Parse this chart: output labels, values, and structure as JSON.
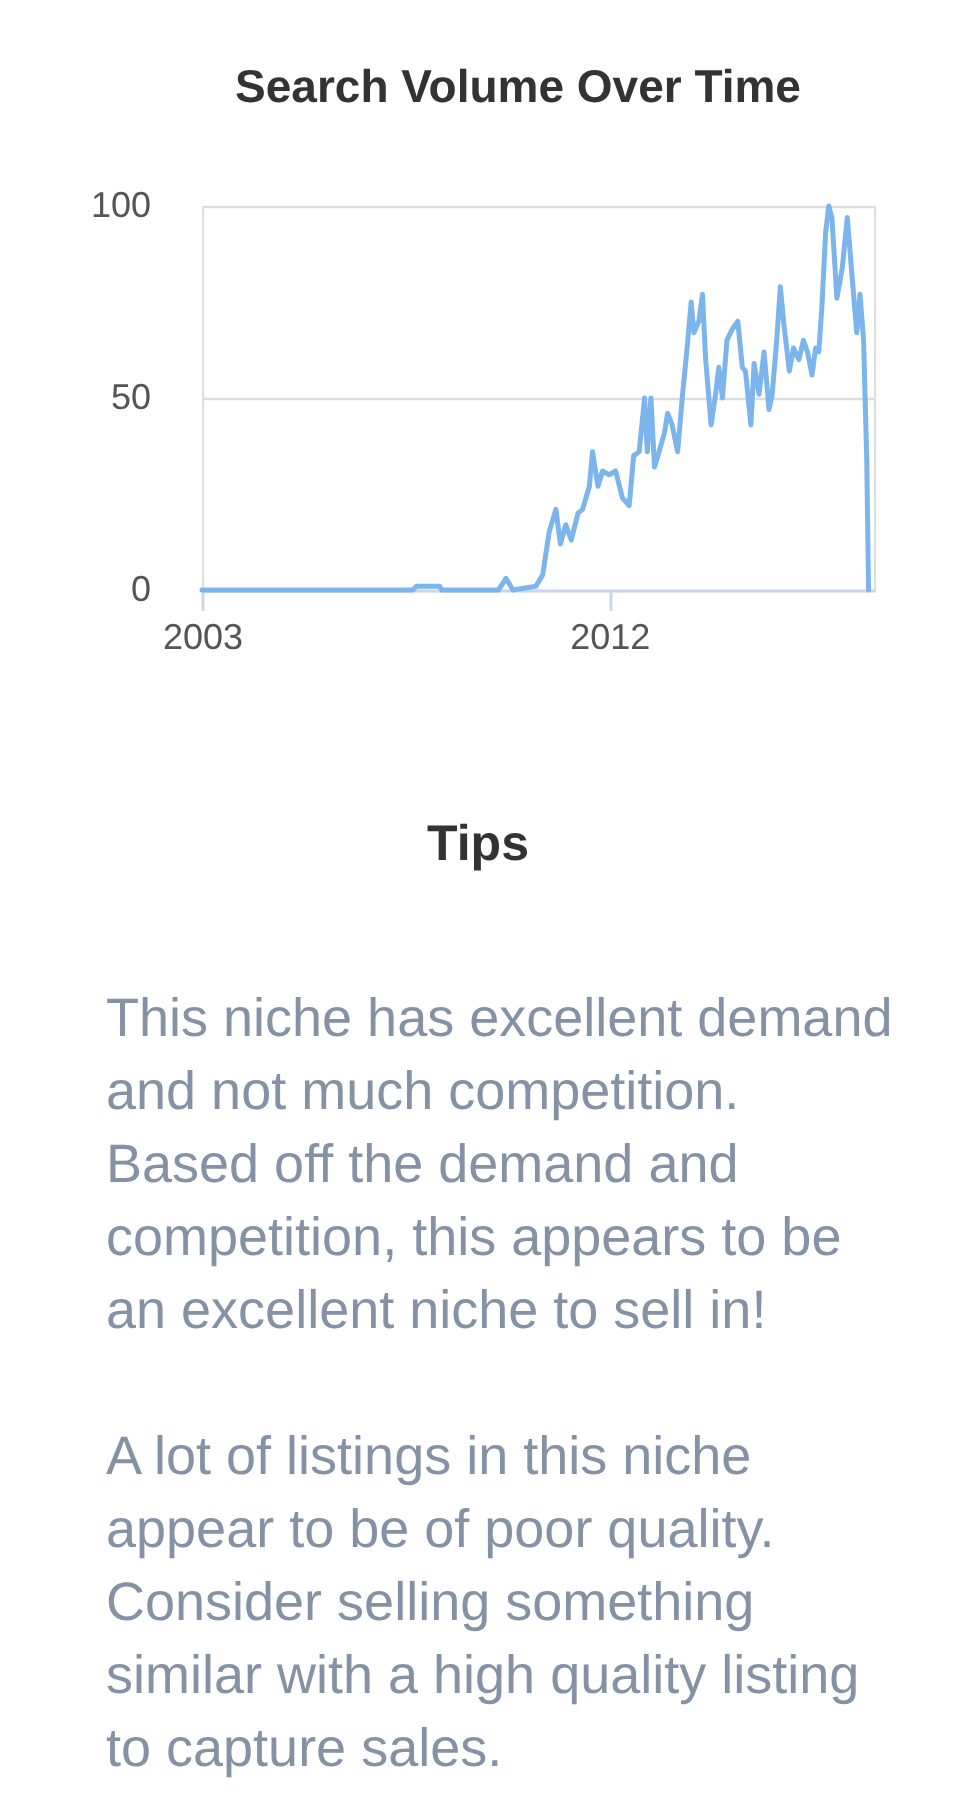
{
  "chart_data": {
    "type": "line",
    "title": "Search Volume Over Time",
    "x": [
      2003,
      2007.66,
      2007.74,
      2008.25,
      2008.3,
      2009.55,
      2009.72,
      2009.87,
      2010.38,
      2010.53,
      2010.67,
      2010.82,
      2010.92,
      2011.04,
      2011.16,
      2011.31,
      2011.41,
      2011.56,
      2011.63,
      2011.75,
      2011.85,
      2012.0,
      2012.14,
      2012.29,
      2012.44,
      2012.54,
      2012.66,
      2012.78,
      2012.84,
      2012.92,
      2013.0,
      2013.1,
      2013.22,
      2013.29,
      2013.39,
      2013.51,
      2013.62,
      2013.72,
      2013.81,
      2013.87,
      2013.98,
      2014.06,
      2014.13,
      2014.25,
      2014.35,
      2014.42,
      2014.5,
      2014.6,
      2014.72,
      2014.84,
      2014.94,
      2015.01,
      2015.13,
      2015.2,
      2015.31,
      2015.42,
      2015.53,
      2015.6,
      2015.7,
      2015.78,
      2015.86,
      2015.98,
      2016.07,
      2016.19,
      2016.29,
      2016.38,
      2016.48,
      2016.56,
      2016.63,
      2016.7,
      2016.78,
      2016.85,
      2016.92,
      2017.03,
      2017.15,
      2017.26,
      2017.37,
      2017.47,
      2017.54,
      2017.62,
      2017.69,
      2017.73
    ],
    "series": [
      {
        "color": "#7cb5ec",
        "values": [
          0,
          0,
          1,
          1,
          0,
          0,
          3,
          0,
          1,
          4,
          15,
          21,
          12,
          17,
          13,
          20,
          21,
          27,
          36,
          27,
          31,
          30,
          31,
          24,
          22,
          35,
          36,
          50,
          36,
          50,
          32,
          36,
          41,
          46,
          43,
          36,
          51,
          63,
          75,
          67,
          70,
          77,
          60,
          43,
          51,
          58,
          50,
          65,
          68,
          70,
          58,
          57,
          43,
          59,
          51,
          62,
          47,
          51,
          65,
          79,
          69,
          57,
          63,
          60,
          65,
          62,
          56,
          63,
          62,
          74,
          93,
          100,
          97,
          76,
          84,
          97,
          81,
          67,
          77,
          65,
          34,
          0
        ]
      }
    ],
    "xlim": [
      2003,
      2017.85
    ],
    "xticks": [
      2003,
      2012
    ],
    "ylim": [
      0,
      100
    ],
    "yticks": [
      0,
      50,
      100
    ],
    "grid": "y",
    "annotations": [
      "Tips",
      "This niche has excellent demand and not much competition. Based off the demand and competition, this appears to be an excellent niche to sell in!",
      "A lot of listings in this niche appear to be of poor quality. Consider selling something similar with a high quality listing to capture sales."
    ]
  }
}
